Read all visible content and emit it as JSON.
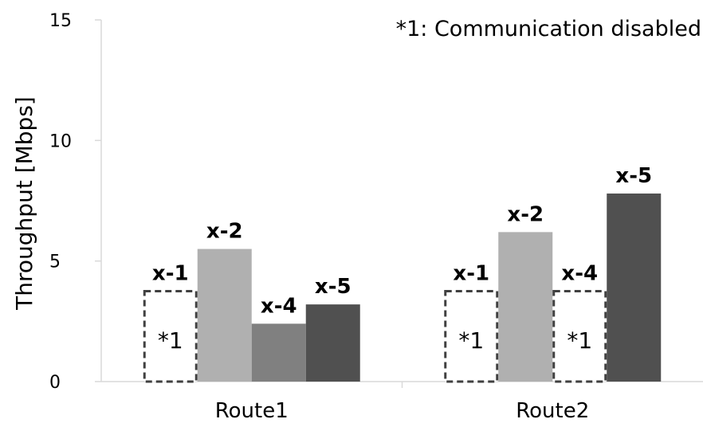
{
  "chart_data": {
    "type": "bar",
    "ylabel": "Throughput [Mbps]",
    "xlabel": "",
    "ylim": [
      0,
      15
    ],
    "yticks": [
      "0",
      "5",
      "10",
      "15"
    ],
    "categories": [
      "Route1",
      "Route2"
    ],
    "annotation": "*1: Communication disabled",
    "disabled_marker": "*1",
    "grid": false,
    "series": [
      {
        "name": "x-1",
        "values": [
          null,
          null
        ],
        "disabled": [
          true,
          true
        ]
      },
      {
        "name": "x-2",
        "values": [
          5.5,
          6.2
        ],
        "disabled": [
          false,
          false
        ]
      },
      {
        "name": "x-4",
        "values": [
          2.4,
          null
        ],
        "disabled": [
          false,
          true
        ]
      },
      {
        "name": "x-5",
        "values": [
          3.2,
          7.8
        ],
        "disabled": [
          false,
          false
        ]
      }
    ],
    "colors": {
      "x-1": "#ffffff",
      "x-2": "#b0b0b0",
      "x-4": "#808080",
      "x-5": "#505050",
      "disabled_border": "#404040",
      "axis": "#d9d9d9"
    }
  }
}
